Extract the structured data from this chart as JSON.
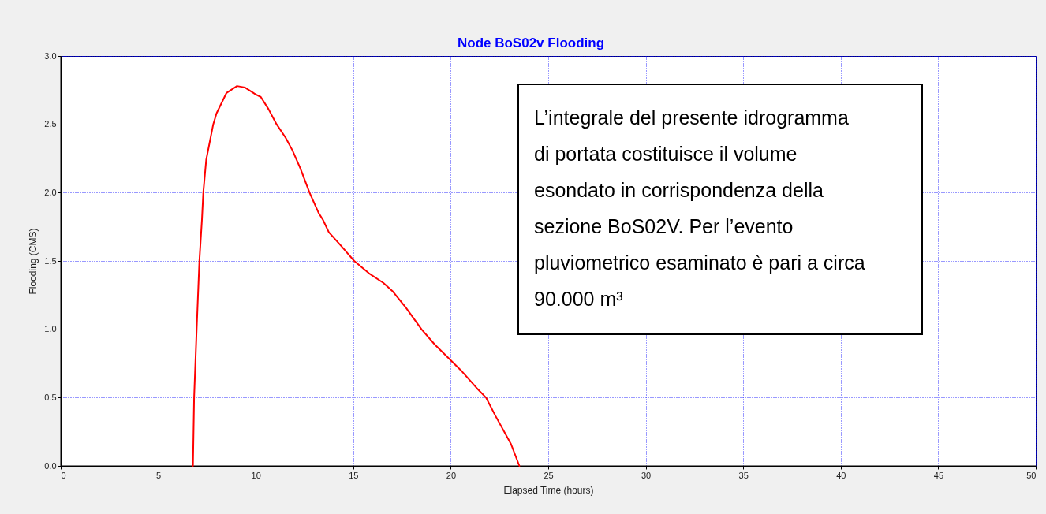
{
  "chart_data": {
    "type": "line",
    "title": "Node BoS02v Flooding",
    "xlabel": "Elapsed Time (hours)",
    "ylabel": "Flooding (CMS)",
    "x": [
      6.78,
      6.84,
      6.97,
      7.11,
      7.24,
      7.31,
      7.46,
      7.82,
      7.99,
      8.5,
      9.04,
      9.44,
      9.99,
      10.26,
      10.66,
      11.07,
      11.54,
      11.88,
      12.28,
      12.76,
      13.23,
      13.45,
      13.75,
      14.38,
      15.05,
      15.8,
      16.54,
      17.01,
      17.69,
      18.5,
      19.17,
      20.02,
      20.52,
      21.33,
      21.81,
      22.28,
      23.09,
      23.52
    ],
    "series": [
      {
        "color": "#ff0000",
        "values": [
          0,
          0.5,
          1.0,
          1.5,
          1.8,
          2.0,
          2.24,
          2.5,
          2.58,
          2.73,
          2.78,
          2.77,
          2.72,
          2.7,
          2.61,
          2.5,
          2.4,
          2.31,
          2.18,
          2.0,
          1.85,
          1.8,
          1.71,
          1.61,
          1.5,
          1.41,
          1.34,
          1.28,
          1.16,
          1.0,
          0.89,
          0.77,
          0.7,
          0.57,
          0.5,
          0.37,
          0.16,
          0
        ]
      }
    ],
    "xlim": [
      0,
      50
    ],
    "xticks": [
      0,
      5,
      10,
      15,
      20,
      25,
      30,
      35,
      40,
      45,
      50
    ],
    "ylim": [
      0,
      3
    ],
    "yticks": [
      {
        "value": 0,
        "label": "0.0"
      },
      {
        "value": 0.5,
        "label": "0.5"
      },
      {
        "value": 1,
        "label": "1.0"
      },
      {
        "value": 1.5,
        "label": "1.5"
      },
      {
        "value": 2,
        "label": "2.0"
      },
      {
        "value": 2.5,
        "label": "2.5"
      },
      {
        "value": 3,
        "label": "3.0"
      }
    ],
    "grid": true,
    "annotations": [
      "L’integrale del presente idrogramma\ndi portata costituisce il volume\nesondato in corrispondenza della\nsezione BoS02V. Per l’evento\npluviometrico esaminato è pari a circa\n90.000 m³"
    ]
  }
}
